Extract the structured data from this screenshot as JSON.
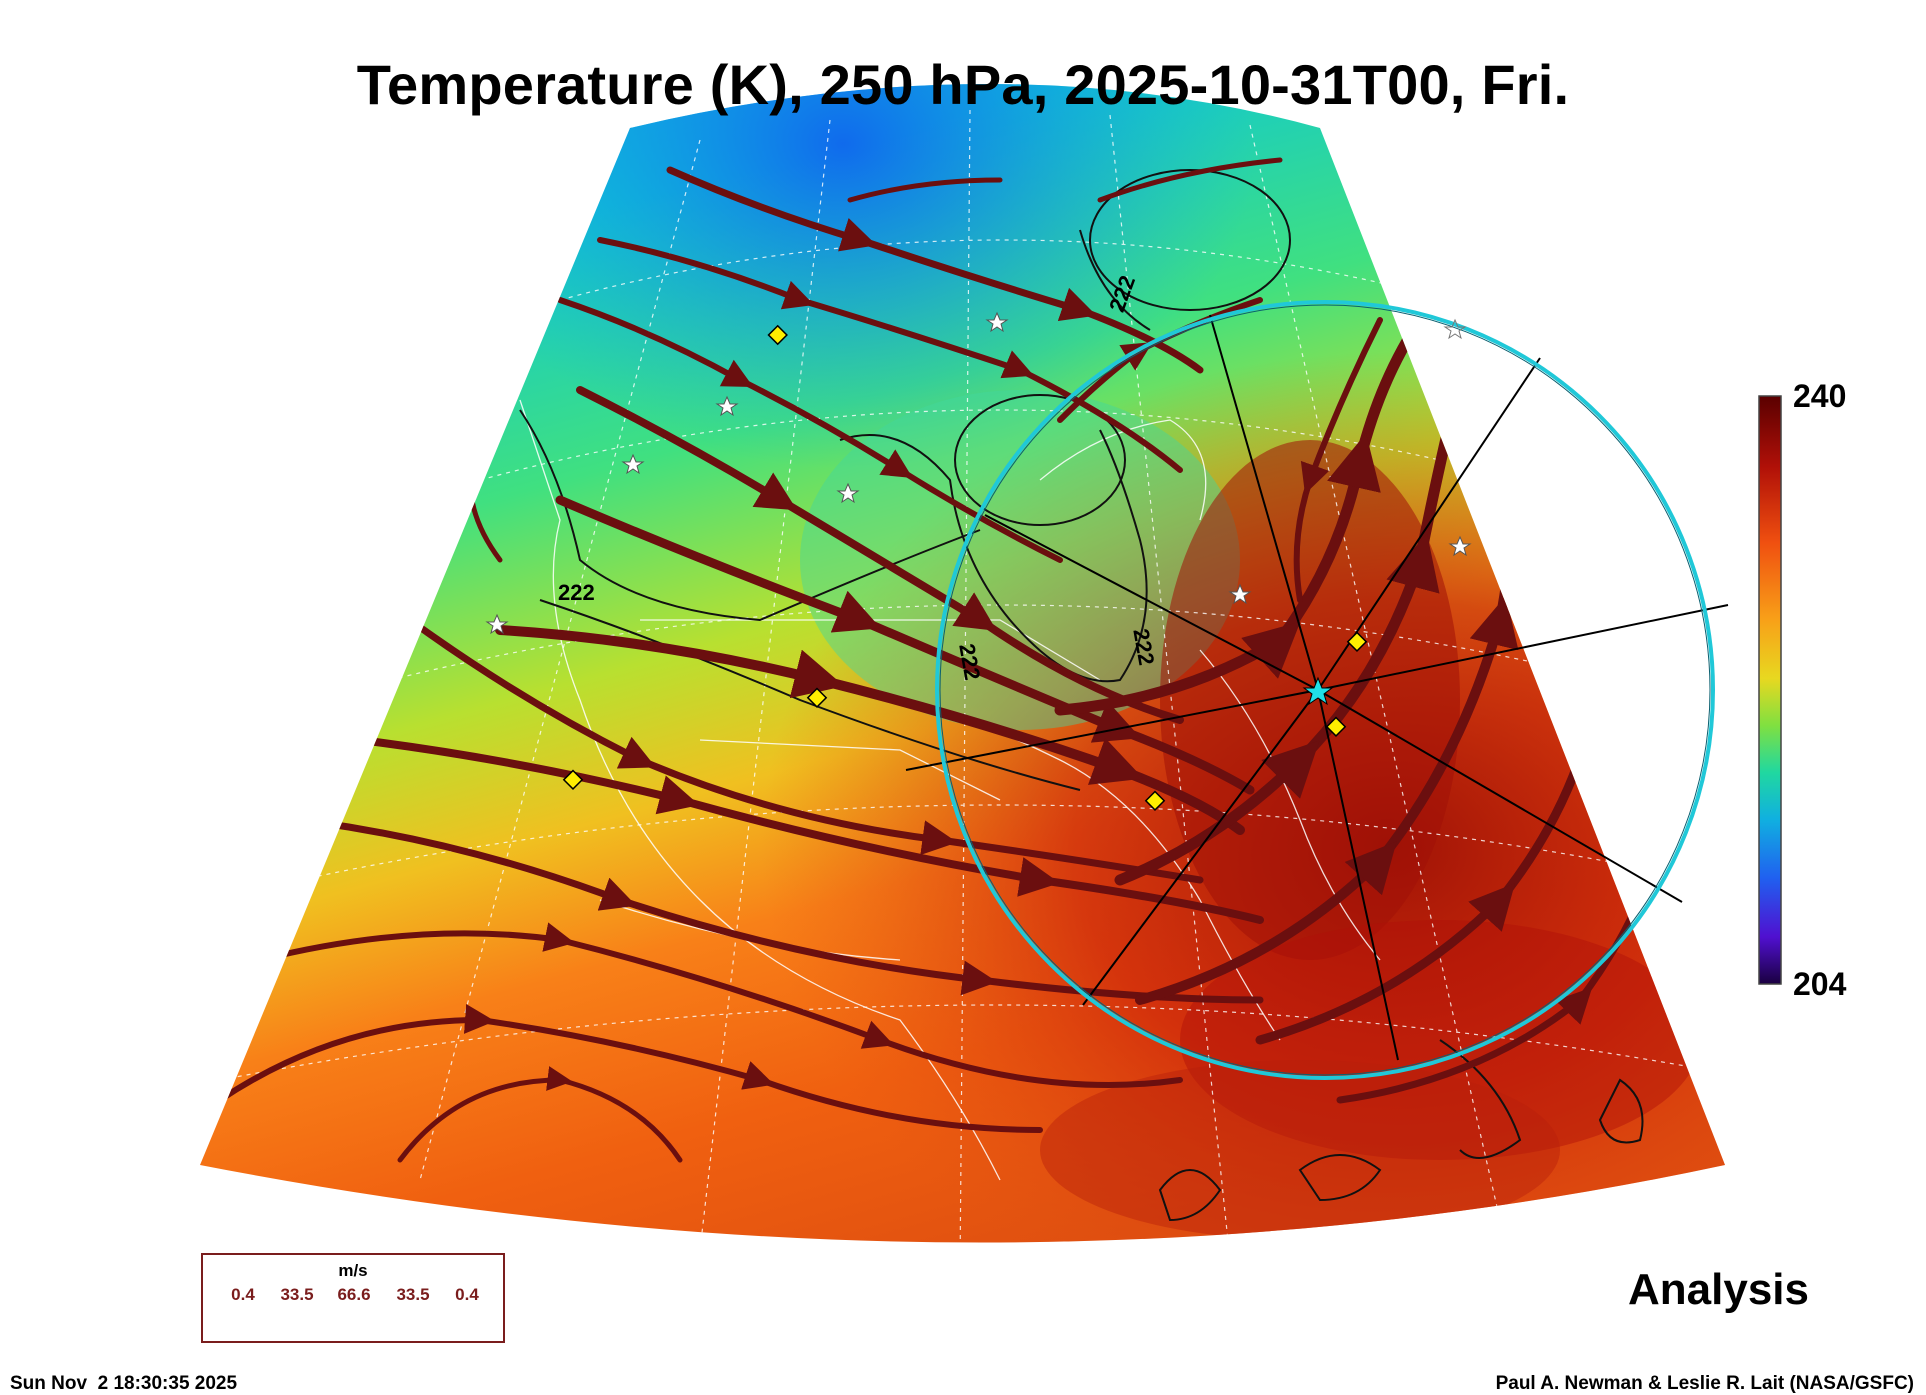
{
  "title": "Temperature (K), 250 hPa, 2025-10-31T00, Fri.",
  "colorbar": {
    "max_label": "240",
    "min_label": "204",
    "max": 240,
    "min": 204,
    "colors": [
      "#8b0000",
      "#c81e0a",
      "#f06010",
      "#f8a018",
      "#e8d820",
      "#a8e030",
      "#40e080",
      "#10c8d0",
      "#1090f0",
      "#2040f0",
      "#4010d0",
      "#300060"
    ]
  },
  "contour_labels": [
    "222",
    "222",
    "222",
    "222"
  ],
  "legend": {
    "unit": "m/s",
    "values": [
      "0.4",
      "33.5",
      "66.6",
      "33.5",
      "0.4"
    ]
  },
  "analysis_label": "Analysis",
  "footer": {
    "timestamp": "Sun Nov  2 18:30:35 2025",
    "credit": "Paul A. Newman & Leslie R. Lait (NASA/GSFC)"
  },
  "colors": {
    "streamline": "#6b0f0f",
    "ring": "#20c8d8",
    "marker_diamond": "#ffee00",
    "contour": "#000000"
  }
}
